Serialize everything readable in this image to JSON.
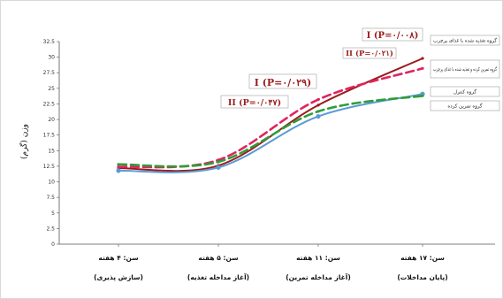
{
  "chart_data": {
    "type": "line",
    "title": "",
    "ylabel": "وزن (گرم)",
    "xlabel": "",
    "ylim": [
      0,
      32.5
    ],
    "ytick_step": 2.5,
    "categories": [
      {
        "line1": "سن: ۴ هفته",
        "line2": "(سازش پذیری)"
      },
      {
        "line1": "سن: ۵ هفته",
        "line2": "(آغاز مداخله تغذیه)"
      },
      {
        "line1": "سن: ۱۱ هفته",
        "line2": "(آغاز مداخله تمرین)"
      },
      {
        "line1": "سن: ۱۷ هفته",
        "line2": "(پایان مداخلات)"
      }
    ],
    "series": [
      {
        "name": "گروه تغذیه شده با غذای پرچرب",
        "color": "#9b1c1c",
        "dash": "solid",
        "marker": false,
        "values": [
          12.2,
          12.6,
          22.3,
          29.8
        ]
      },
      {
        "name": "گروه تمرین کرده و تغذیه شده با غذای پرچرب",
        "color": "#e0245e",
        "dash": "dashed",
        "marker": false,
        "values": [
          12.4,
          13.5,
          23.2,
          28.2
        ]
      },
      {
        "name": "گروه کنترل",
        "color": "#5b9bd5",
        "dash": "solid",
        "marker": true,
        "values": [
          11.8,
          12.3,
          20.5,
          24.1
        ]
      },
      {
        "name": "گروه تمرین کرده",
        "color": "#2e9d3a",
        "dash": "dashed",
        "marker": false,
        "values": [
          12.8,
          13.2,
          21.3,
          23.8
        ]
      }
    ],
    "legend_placement": "right",
    "grid": false,
    "annotations": [
      {
        "text": "I (P=۰/۰۰۸)",
        "color": "#9b1c1c",
        "boxed": true
      },
      {
        "text": "II (P=۰/۰۲۱)",
        "color": "#9b1c1c",
        "boxed": true
      },
      {
        "text": "I (P=۰/۰۲۹)",
        "color": "#9b1c1c",
        "boxed": true
      },
      {
        "text": "II (P=۰/۰۴۷)",
        "color": "#9b1c1c",
        "boxed": true
      }
    ]
  }
}
